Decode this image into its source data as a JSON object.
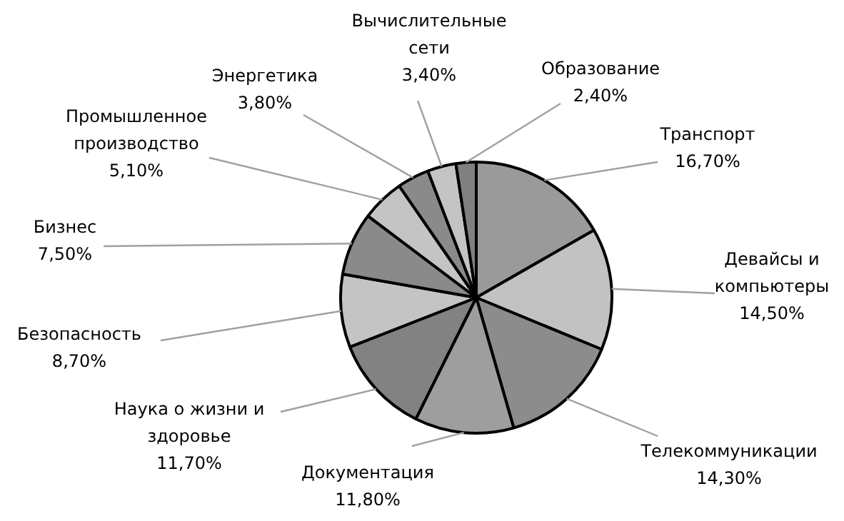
{
  "chart_data": {
    "type": "pie",
    "categories": [
      "Транспорт",
      "Девайсы и\nкомпьютеры",
      "Телекоммуникации",
      "Документация",
      "Наука о жизни и\nздоровье",
      "Безопасность",
      "Бизнес",
      "Промышленное\nпроизводство",
      "Энергетика",
      "Вычислительные\nсети",
      "Образование"
    ],
    "values": [
      16.7,
      14.5,
      14.3,
      11.8,
      11.7,
      8.7,
      7.5,
      5.1,
      3.8,
      3.4,
      2.4
    ],
    "value_labels": [
      "16,70%",
      "14,50%",
      "14,30%",
      "11,80%",
      "11,70%",
      "8,70%",
      "7,50%",
      "5,10%",
      "3,80%",
      "3,40%",
      "2,40%"
    ],
    "colors": [
      "#9a9a9a",
      "#c2c2c2",
      "#8c8c8c",
      "#9e9e9e",
      "#828282",
      "#c4c4c4",
      "#8a8a8a",
      "#c4c4c4",
      "#8a8a8a",
      "#c4c4c4",
      "#808080"
    ]
  }
}
